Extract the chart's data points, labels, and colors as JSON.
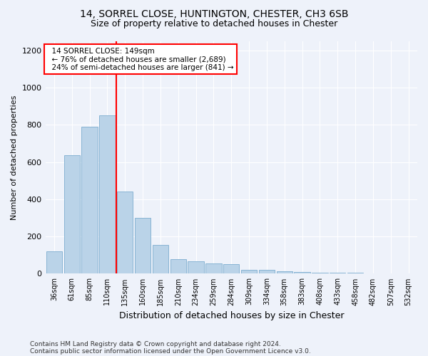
{
  "title_line1": "14, SORREL CLOSE, HUNTINGTON, CHESTER, CH3 6SB",
  "title_line2": "Size of property relative to detached houses in Chester",
  "xlabel": "Distribution of detached houses by size in Chester",
  "ylabel": "Number of detached properties",
  "categories": [
    "36sqm",
    "61sqm",
    "85sqm",
    "110sqm",
    "135sqm",
    "160sqm",
    "185sqm",
    "210sqm",
    "234sqm",
    "259sqm",
    "284sqm",
    "309sqm",
    "334sqm",
    "358sqm",
    "383sqm",
    "408sqm",
    "433sqm",
    "458sqm",
    "482sqm",
    "507sqm",
    "532sqm"
  ],
  "values": [
    120,
    635,
    790,
    850,
    440,
    300,
    155,
    80,
    65,
    55,
    50,
    20,
    20,
    12,
    8,
    5,
    5,
    5,
    3,
    3,
    3
  ],
  "bar_color": "#bad3e8",
  "bar_edge_color": "#88b4d4",
  "annotation_line1": "14 SORREL CLOSE: 149sqm",
  "annotation_line2": "← 76% of detached houses are smaller (2,689)",
  "annotation_line3": "24% of semi-detached houses are larger (841) →",
  "ylim": [
    0,
    1250
  ],
  "yticks": [
    0,
    200,
    400,
    600,
    800,
    1000,
    1200
  ],
  "red_line_x": 3.5,
  "footnote1": "Contains HM Land Registry data © Crown copyright and database right 2024.",
  "footnote2": "Contains public sector information licensed under the Open Government Licence v3.0.",
  "background_color": "#eef2fa",
  "grid_color": "#ffffff"
}
